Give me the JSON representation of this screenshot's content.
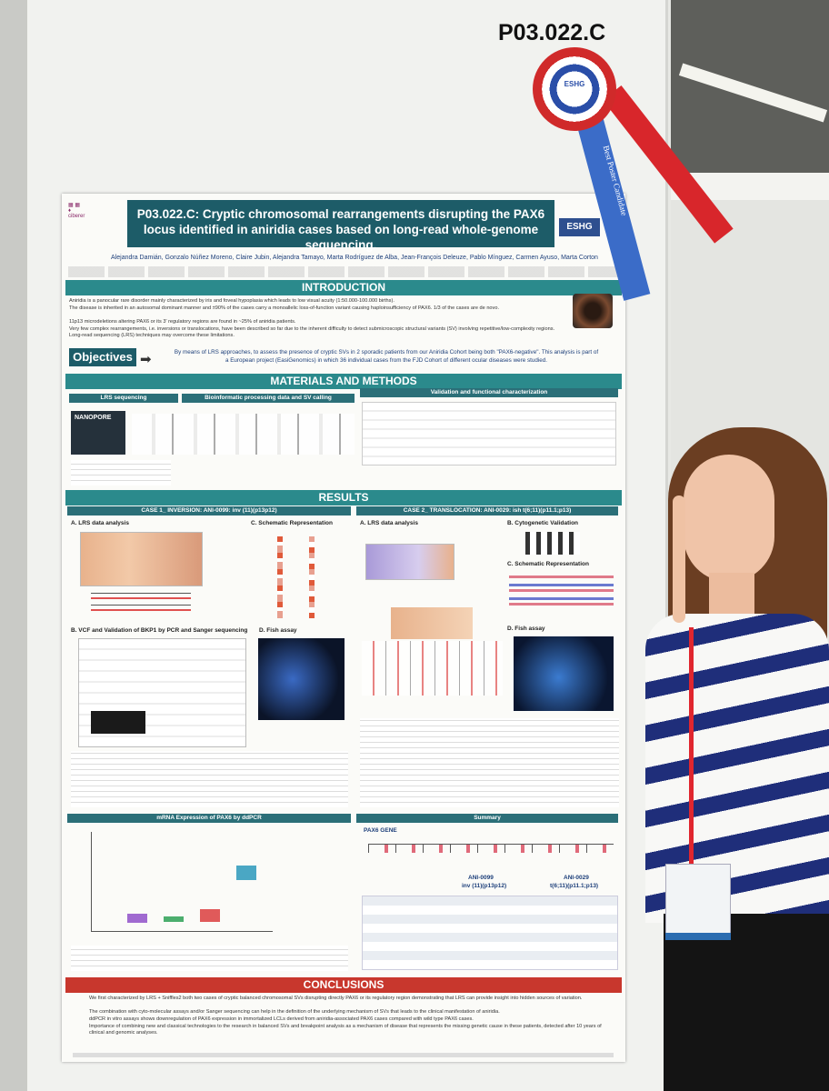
{
  "board_label": "P03.022.C",
  "ribbon": {
    "badge": "ESHG",
    "text": "Best Poster Candidate"
  },
  "poster": {
    "title": "P03.022.C: Cryptic chromosomal rearrangements disrupting the PAX6 locus identified in aniridia cases based on long-read whole-genome sequencing.",
    "logo": "ESHG",
    "authors": "Alejandra Damián, Gonzalo Núñez Moreno, Claire Jubin, Alejandra Tamayo, Marta Rodríguez de Alba, Jean-François Deleuze, Pablo Mínguez, Carmen Ayuso, Marta Corton",
    "introduction": {
      "heading": "INTRODUCTION",
      "bullets": [
        "Aniridia is a panocular rare disorder mainly characterized by iris and foveal hypoplasia which leads to low visual acuity (1:50.000-100.000 births).",
        "The disease is inherited in an autosomal dominant manner and ±90% of the cases carry a monoallelic loss-of-function variant causing haploinsufficiency of PAX6. 1/3 of the cases are de novo.",
        "11p13 microdeletions altering PAX6 or its 3' regulatory regions are found in ~25% of aniridia patients.",
        "Very few complex rearrangements, i.e. inversions or translocations, have been described so far due to the inherent difficulty to detect submicroscopic structural variants (SV) involving repetitive/low-complexity regions. Long-read sequencing (LRS) techniques may overcome these limitations."
      ]
    },
    "objectives": {
      "heading": "Objectives",
      "text": "By means of LRS approaches, to assess the presence of cryptic SVs in 2 sporadic patients from our Aniridia Cohort being both \"PAX6-negative\". This analysis is part of a European project (EasiGenomics) in which 36 individual cases from the FJD Cohort of different ocular diseases were studied."
    },
    "methods": {
      "heading": "MATERIALS AND METHODS",
      "columns": [
        "LRS sequencing",
        "Bioinformatic processing data and SV calling",
        "Validation and functional characterization"
      ],
      "platform": "NANOPORE"
    },
    "results": {
      "heading": "RESULTS",
      "case1": {
        "title": "CASE 1_ INVERSION: ANI-0099: inv (11)(p13p12)",
        "panels": [
          "A. LRS data analysis",
          "C. Schematic Representation",
          "B. VCF and Validation of BKP1 by PCR and Sanger sequencing",
          "D. Fish assay",
          "mRNA Expression of PAX6 by ddPCR"
        ]
      },
      "case2": {
        "title": "CASE 2_ TRANSLOCATION: ANI-0029: ish t(6;11)(p11.1;p13)",
        "panels": [
          "A. LRS data analysis",
          "B. Cytogenetic Validation",
          "C. Schematic Representation",
          "D. Fish assay"
        ]
      },
      "summary": {
        "heading": "Summary",
        "gene": "PAX6 GENE",
        "cases": [
          {
            "id": "ANI-0099",
            "sv": "inv (11)(p13p12)"
          },
          {
            "id": "ANI-0029",
            "sv": "t(6;11)(p11.1;p13)"
          }
        ]
      }
    },
    "conclusions": {
      "heading": "CONCLUSIONS",
      "bullets": [
        "We first characterized by LRS + Sniffles2 both two cases of cryptic balanced chromosomal SVs disrupting directly PAX6 or its regulatory region demonstrating that LRS can provide insight into hidden sources of variation.",
        "The combination with cyto-molecular assays and/or Sanger sequencing can help in the definition of the underlying mechanism of SVs that leads to the clinical manifestation of aniridia.",
        "ddPCR in vitro assays shows downregulation of PAX6 expression in immortalized LCLs derived from aniridia-associated PAX6 cases compared with wild type PAX6 cases.",
        "Importance of combining new and classical technologies to the research in balanced SVs and breakpoint analysis as a mechanism of disease that represents the missing genetic cause in these patients, detected after 10 years of clinical and genomic analyses."
      ]
    }
  }
}
